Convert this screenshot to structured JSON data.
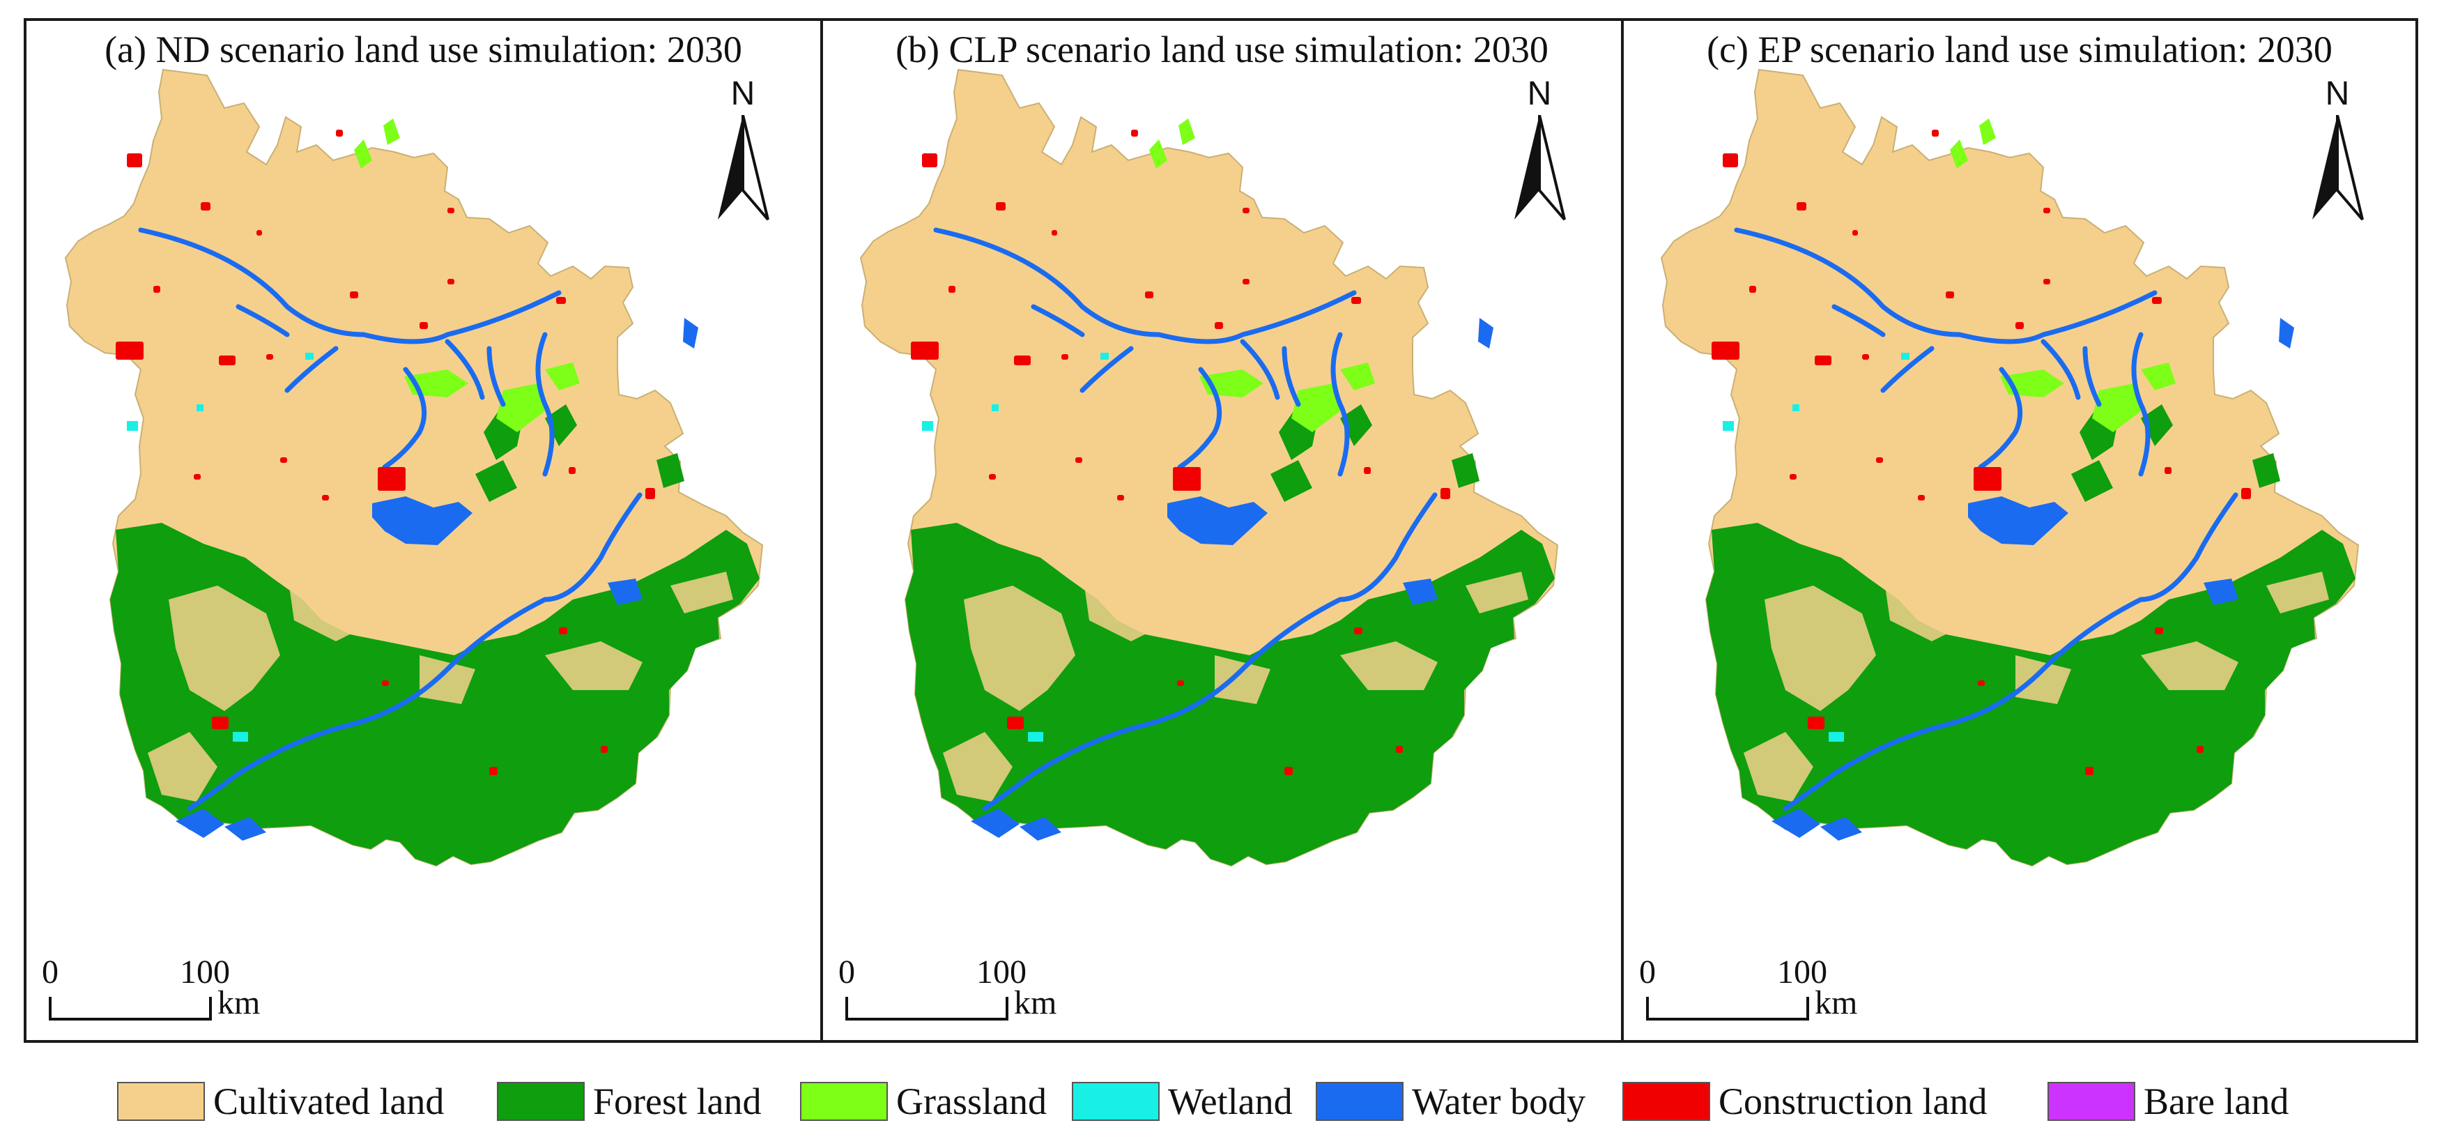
{
  "figure": {
    "panels": [
      {
        "id": "a",
        "title": "(a) ND scenario land use simulation: 2030"
      },
      {
        "id": "b",
        "title": "(b) CLP scenario land use simulation: 2030"
      },
      {
        "id": "c",
        "title": "(c) EP scenario land use simulation: 2030"
      }
    ],
    "north_label": "N",
    "scale_bar": {
      "start": "0",
      "end": "100",
      "unit": "km"
    },
    "legend": [
      {
        "label": "Cultivated land",
        "color": "#f5d08c",
        "icon": "cultivated-land-swatch"
      },
      {
        "label": "Forest land",
        "color": "#0e9e0e",
        "icon": "forest-land-swatch"
      },
      {
        "label": "Grassland",
        "color": "#7dff17",
        "icon": "grassland-swatch"
      },
      {
        "label": "Wetland",
        "color": "#18f0e6",
        "icon": "wetland-swatch"
      },
      {
        "label": "Water body",
        "color": "#1a6bf0",
        "icon": "water-body-swatch"
      },
      {
        "label": "Construction land",
        "color": "#f00000",
        "icon": "construction-land-swatch"
      },
      {
        "label": "Bare land",
        "color": "#cc33ff",
        "icon": "bare-land-swatch"
      }
    ]
  }
}
